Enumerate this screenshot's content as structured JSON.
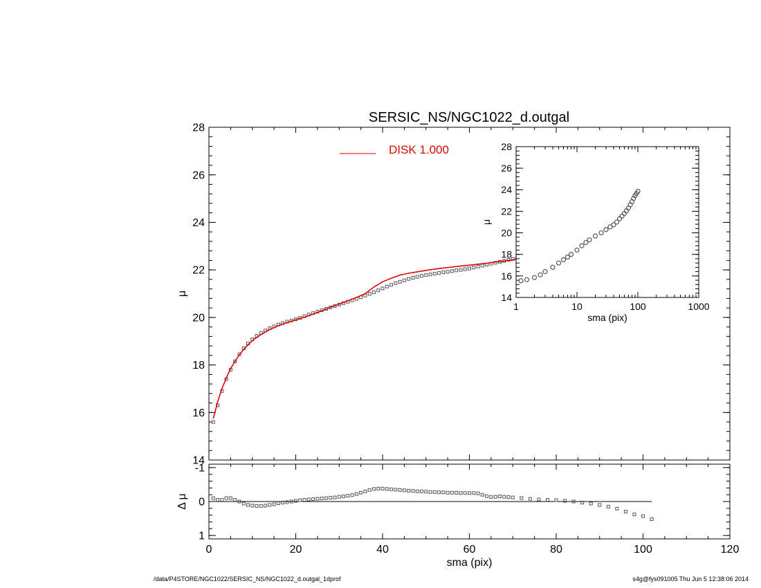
{
  "figure": {
    "title": "SERSIC_NS/NGC1022_d.outgal",
    "footer_left": "/data/P4STORE/NGC1022/SERSIC_NS/NGC1022_d.outgal_1dprof",
    "footer_right": "s4g@fys091005  Thu Jun  5 12:38:06 2014"
  },
  "colors": {
    "data_points": "#555555",
    "model": "#e00000",
    "axes": "#000000"
  },
  "chart_data": [
    {
      "id": "main-profile",
      "type": "scatter",
      "title": "SERSIC_NS/NGC1022_d.outgal",
      "xlabel": "sma (pix)",
      "ylabel": "μ",
      "xlim": [
        0,
        120
      ],
      "ylim": [
        28,
        14
      ],
      "y_inverted": true,
      "x_ticks": [
        0,
        20,
        40,
        60,
        80,
        100,
        120
      ],
      "y_ticks": [
        14,
        16,
        18,
        20,
        22,
        24,
        26,
        28
      ],
      "legend": {
        "entries": [
          {
            "label": "DISK  1.000",
            "color": "#e00000"
          }
        ],
        "placement": "top-center"
      },
      "series": [
        {
          "name": "data",
          "marker": "square",
          "x": [
            1,
            2,
            3,
            4,
            5,
            6,
            7,
            8,
            9,
            10,
            11,
            12,
            13,
            14,
            15,
            16,
            17,
            18,
            19,
            20,
            21,
            22,
            23,
            24,
            25,
            26,
            27,
            28,
            29,
            30,
            31,
            32,
            33,
            34,
            35,
            36,
            37,
            38,
            39,
            40,
            41,
            42,
            43,
            44,
            45,
            46,
            47,
            48,
            49,
            50,
            51,
            52,
            53,
            54,
            55,
            56,
            57,
            58,
            59,
            60,
            61,
            62,
            63,
            64,
            65,
            66,
            67,
            68,
            69,
            70,
            71,
            72,
            73,
            74,
            75,
            76,
            77,
            78,
            79,
            80,
            82,
            84,
            86,
            88,
            90,
            92,
            94,
            96,
            98,
            100,
            102
          ],
          "y": [
            15.6,
            16.3,
            16.9,
            17.4,
            17.8,
            18.15,
            18.45,
            18.7,
            18.9,
            19.08,
            19.22,
            19.35,
            19.45,
            19.55,
            19.62,
            19.7,
            19.76,
            19.82,
            19.87,
            19.92,
            19.98,
            20.05,
            20.12,
            20.18,
            20.24,
            20.3,
            20.36,
            20.42,
            20.48,
            20.54,
            20.6,
            20.66,
            20.72,
            20.78,
            20.85,
            20.92,
            20.99,
            21.06,
            21.14,
            21.22,
            21.3,
            21.37,
            21.44,
            21.5,
            21.56,
            21.62,
            21.67,
            21.71,
            21.75,
            21.78,
            21.81,
            21.84,
            21.87,
            21.9,
            21.92,
            21.95,
            21.98,
            22.0,
            22.03,
            22.06,
            22.1,
            22.14,
            22.18,
            22.22,
            22.26,
            22.3,
            22.34,
            22.38,
            22.42,
            22.46,
            22.5,
            22.54,
            22.58,
            22.62,
            22.66,
            22.7,
            22.75,
            22.8,
            22.85,
            22.9,
            22.96,
            23.03,
            23.1,
            23.17,
            23.25,
            23.35,
            23.46,
            23.58,
            23.7,
            23.8,
            23.9
          ]
        },
        {
          "name": "DISK  1.000",
          "marker": "line",
          "x": [
            1,
            2,
            3,
            4,
            5,
            6,
            7,
            8,
            9,
            10,
            11,
            12,
            13,
            14,
            15,
            16,
            17,
            18,
            19,
            20,
            22,
            24,
            26,
            28,
            30,
            32,
            34,
            36,
            38,
            40,
            42,
            44,
            46,
            48,
            50,
            52,
            54,
            56,
            58,
            60,
            62,
            64,
            66,
            68,
            70,
            72,
            74,
            76,
            78,
            80,
            82,
            84,
            86,
            88,
            90,
            92,
            94,
            96,
            98,
            100,
            102
          ],
          "y": [
            15.75,
            16.45,
            17.0,
            17.45,
            17.85,
            18.15,
            18.42,
            18.65,
            18.85,
            19.02,
            19.16,
            19.28,
            19.39,
            19.49,
            19.57,
            19.65,
            19.72,
            19.78,
            19.84,
            19.9,
            20.01,
            20.14,
            20.28,
            20.43,
            20.56,
            20.7,
            20.84,
            21.0,
            21.28,
            21.5,
            21.65,
            21.78,
            21.86,
            21.92,
            21.98,
            22.03,
            22.08,
            22.12,
            22.16,
            22.2,
            22.24,
            22.28,
            22.33,
            22.37,
            22.42,
            22.47,
            22.52,
            22.57,
            22.63,
            22.7,
            22.78,
            22.86,
            22.93,
            23.0,
            23.07,
            23.13,
            23.19,
            23.25,
            23.31,
            23.37,
            23.45
          ]
        }
      ]
    },
    {
      "id": "inset-profile",
      "type": "scatter",
      "xlabel": "sma (pix)",
      "ylabel": "μ",
      "x_scale": "log",
      "xlim": [
        1,
        1000
      ],
      "ylim": [
        28,
        14
      ],
      "y_inverted": true,
      "x_ticks": [
        1,
        10,
        100,
        1000
      ],
      "y_ticks": [
        14,
        16,
        18,
        20,
        22,
        24,
        26,
        28
      ],
      "series": [
        {
          "name": "data",
          "marker": "circle",
          "x": [
            1.2,
            1.5,
            2,
            2.5,
            3,
            4,
            5,
            6,
            7,
            8,
            10,
            12,
            14,
            16,
            20,
            25,
            30,
            35,
            40,
            45,
            50,
            55,
            60,
            65,
            70,
            75,
            80,
            85,
            90,
            95,
            100
          ],
          "y": [
            15.55,
            15.65,
            15.85,
            16.1,
            16.4,
            16.8,
            17.2,
            17.5,
            17.75,
            18.0,
            18.4,
            18.8,
            19.1,
            19.35,
            19.7,
            20.0,
            20.3,
            20.55,
            20.75,
            21.0,
            21.3,
            21.55,
            21.8,
            22.05,
            22.3,
            22.6,
            22.9,
            23.2,
            23.45,
            23.65,
            23.85
          ]
        }
      ]
    },
    {
      "id": "residuals",
      "type": "scatter",
      "xlabel": "sma (pix)",
      "ylabel": "Δ μ",
      "xlim": [
        0,
        120
      ],
      "ylim": [
        -1.1,
        1.1
      ],
      "x_ticks": [
        0,
        20,
        40,
        60,
        80,
        100,
        120
      ],
      "y_ticks": [
        -1,
        0,
        1
      ],
      "zero_line": true,
      "series": [
        {
          "name": "residual",
          "marker": "square",
          "x": [
            1,
            2,
            3,
            4,
            5,
            6,
            7,
            8,
            9,
            10,
            11,
            12,
            13,
            14,
            15,
            16,
            17,
            18,
            19,
            20,
            21,
            22,
            23,
            24,
            25,
            26,
            27,
            28,
            29,
            30,
            31,
            32,
            33,
            34,
            35,
            36,
            37,
            38,
            39,
            40,
            41,
            42,
            43,
            44,
            45,
            46,
            47,
            48,
            49,
            50,
            51,
            52,
            53,
            54,
            55,
            56,
            57,
            58,
            59,
            60,
            61,
            62,
            63,
            64,
            65,
            66,
            67,
            68,
            69,
            70,
            72,
            74,
            76,
            78,
            80,
            82,
            84,
            86,
            88,
            90,
            92,
            94,
            96,
            98,
            100,
            102
          ],
          "y": [
            -0.1,
            -0.05,
            -0.05,
            -0.1,
            -0.1,
            -0.05,
            0.0,
            0.06,
            0.1,
            0.12,
            0.13,
            0.13,
            0.12,
            0.1,
            0.08,
            0.05,
            0.03,
            0.02,
            0.0,
            -0.02,
            -0.04,
            -0.05,
            -0.06,
            -0.07,
            -0.08,
            -0.09,
            -0.1,
            -0.11,
            -0.12,
            -0.14,
            -0.15,
            -0.17,
            -0.19,
            -0.22,
            -0.26,
            -0.3,
            -0.34,
            -0.37,
            -0.38,
            -0.38,
            -0.37,
            -0.36,
            -0.35,
            -0.34,
            -0.33,
            -0.32,
            -0.31,
            -0.3,
            -0.3,
            -0.29,
            -0.28,
            -0.28,
            -0.27,
            -0.27,
            -0.26,
            -0.26,
            -0.26,
            -0.25,
            -0.25,
            -0.25,
            -0.25,
            -0.24,
            -0.2,
            -0.16,
            -0.13,
            -0.14,
            -0.15,
            -0.14,
            -0.13,
            -0.12,
            -0.1,
            -0.08,
            -0.06,
            -0.05,
            -0.04,
            -0.02,
            0.0,
            0.03,
            0.06,
            0.1,
            0.15,
            0.21,
            0.3,
            0.38,
            0.43,
            0.52
          ]
        }
      ]
    }
  ]
}
